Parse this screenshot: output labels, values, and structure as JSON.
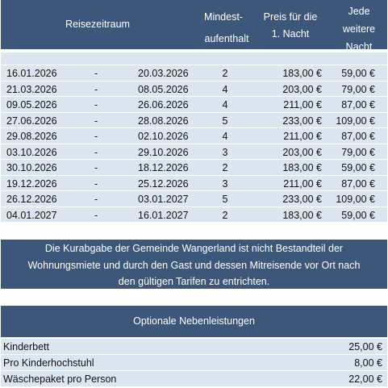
{
  "header": {
    "reisezeitraum": "Reisezeitraum",
    "mindest_line1": "Mindest-",
    "mindest_line2": "aufenthalt",
    "preis_line1": "Preis für die",
    "preis_line2": "1. Nacht",
    "jede_line1": "Jede",
    "jede_line2": "weitere",
    "jede_line3": "Nacht"
  },
  "rows": [
    {
      "from": "16.01.2026",
      "dash": "-",
      "to": "20.03.2026",
      "min": "2",
      "first_night": "183,00 €",
      "further_night": "59,00 €"
    },
    {
      "from": "21.03.2026",
      "dash": "-",
      "to": "08.05.2026",
      "min": "4",
      "first_night": "203,00 €",
      "further_night": "79,00 €"
    },
    {
      "from": "09.05.2026",
      "dash": "-",
      "to": "26.06.2026",
      "min": "4",
      "first_night": "211,00 €",
      "further_night": "87,00 €"
    },
    {
      "from": "27.06.2026",
      "dash": "-",
      "to": "28.08.2026",
      "min": "5",
      "first_night": "233,00 €",
      "further_night": "109,00 €"
    },
    {
      "from": "29.08.2026",
      "dash": "-",
      "to": "02.10.2026",
      "min": "4",
      "first_night": "211,00 €",
      "further_night": "87,00 €"
    },
    {
      "from": "03.10.2026",
      "dash": "-",
      "to": "29.10.2026",
      "min": "3",
      "first_night": "203,00 €",
      "further_night": "79,00 €"
    },
    {
      "from": "30.10.2026",
      "dash": "-",
      "to": "18.12.2026",
      "min": "2",
      "first_night": "183,00 €",
      "further_night": "59,00 €"
    },
    {
      "from": "19.12.2026",
      "dash": "-",
      "to": "25.12.2026",
      "min": "3",
      "first_night": "211,00 €",
      "further_night": "87,00 €"
    },
    {
      "from": "26.12.2026",
      "dash": "-",
      "to": "03.01.2027",
      "min": "5",
      "first_night": "233,00 €",
      "further_night": "109,00 €"
    },
    {
      "from": "04.01.2027",
      "dash": "-",
      "to": "16.01.2027",
      "min": "2",
      "first_night": "183,00 €",
      "further_night": "59,00 €"
    }
  ],
  "note": {
    "line1": "Die Kurabgabe der Gemeinde Wangerland ist nicht Bestandteil der",
    "line2": "Wohnungsmiete und durch den Gast und dessen Mitreisende vor Ort nach",
    "line3": "den gültigen Tarifen zu entrichten."
  },
  "optional": {
    "title": "Optionale Nebenleistungen",
    "items": [
      {
        "label": "Kinderbett",
        "price": "25,00 €"
      },
      {
        "label": "Pro Kinderhochstuhl",
        "price": "8,00 €"
      },
      {
        "label": "Wäschepaket pro Person",
        "price": "22,00 €"
      }
    ]
  },
  "colors": {
    "header_bg": "#3c5779",
    "row_bg": "#dce6f1",
    "header_text": "#ffffff"
  }
}
